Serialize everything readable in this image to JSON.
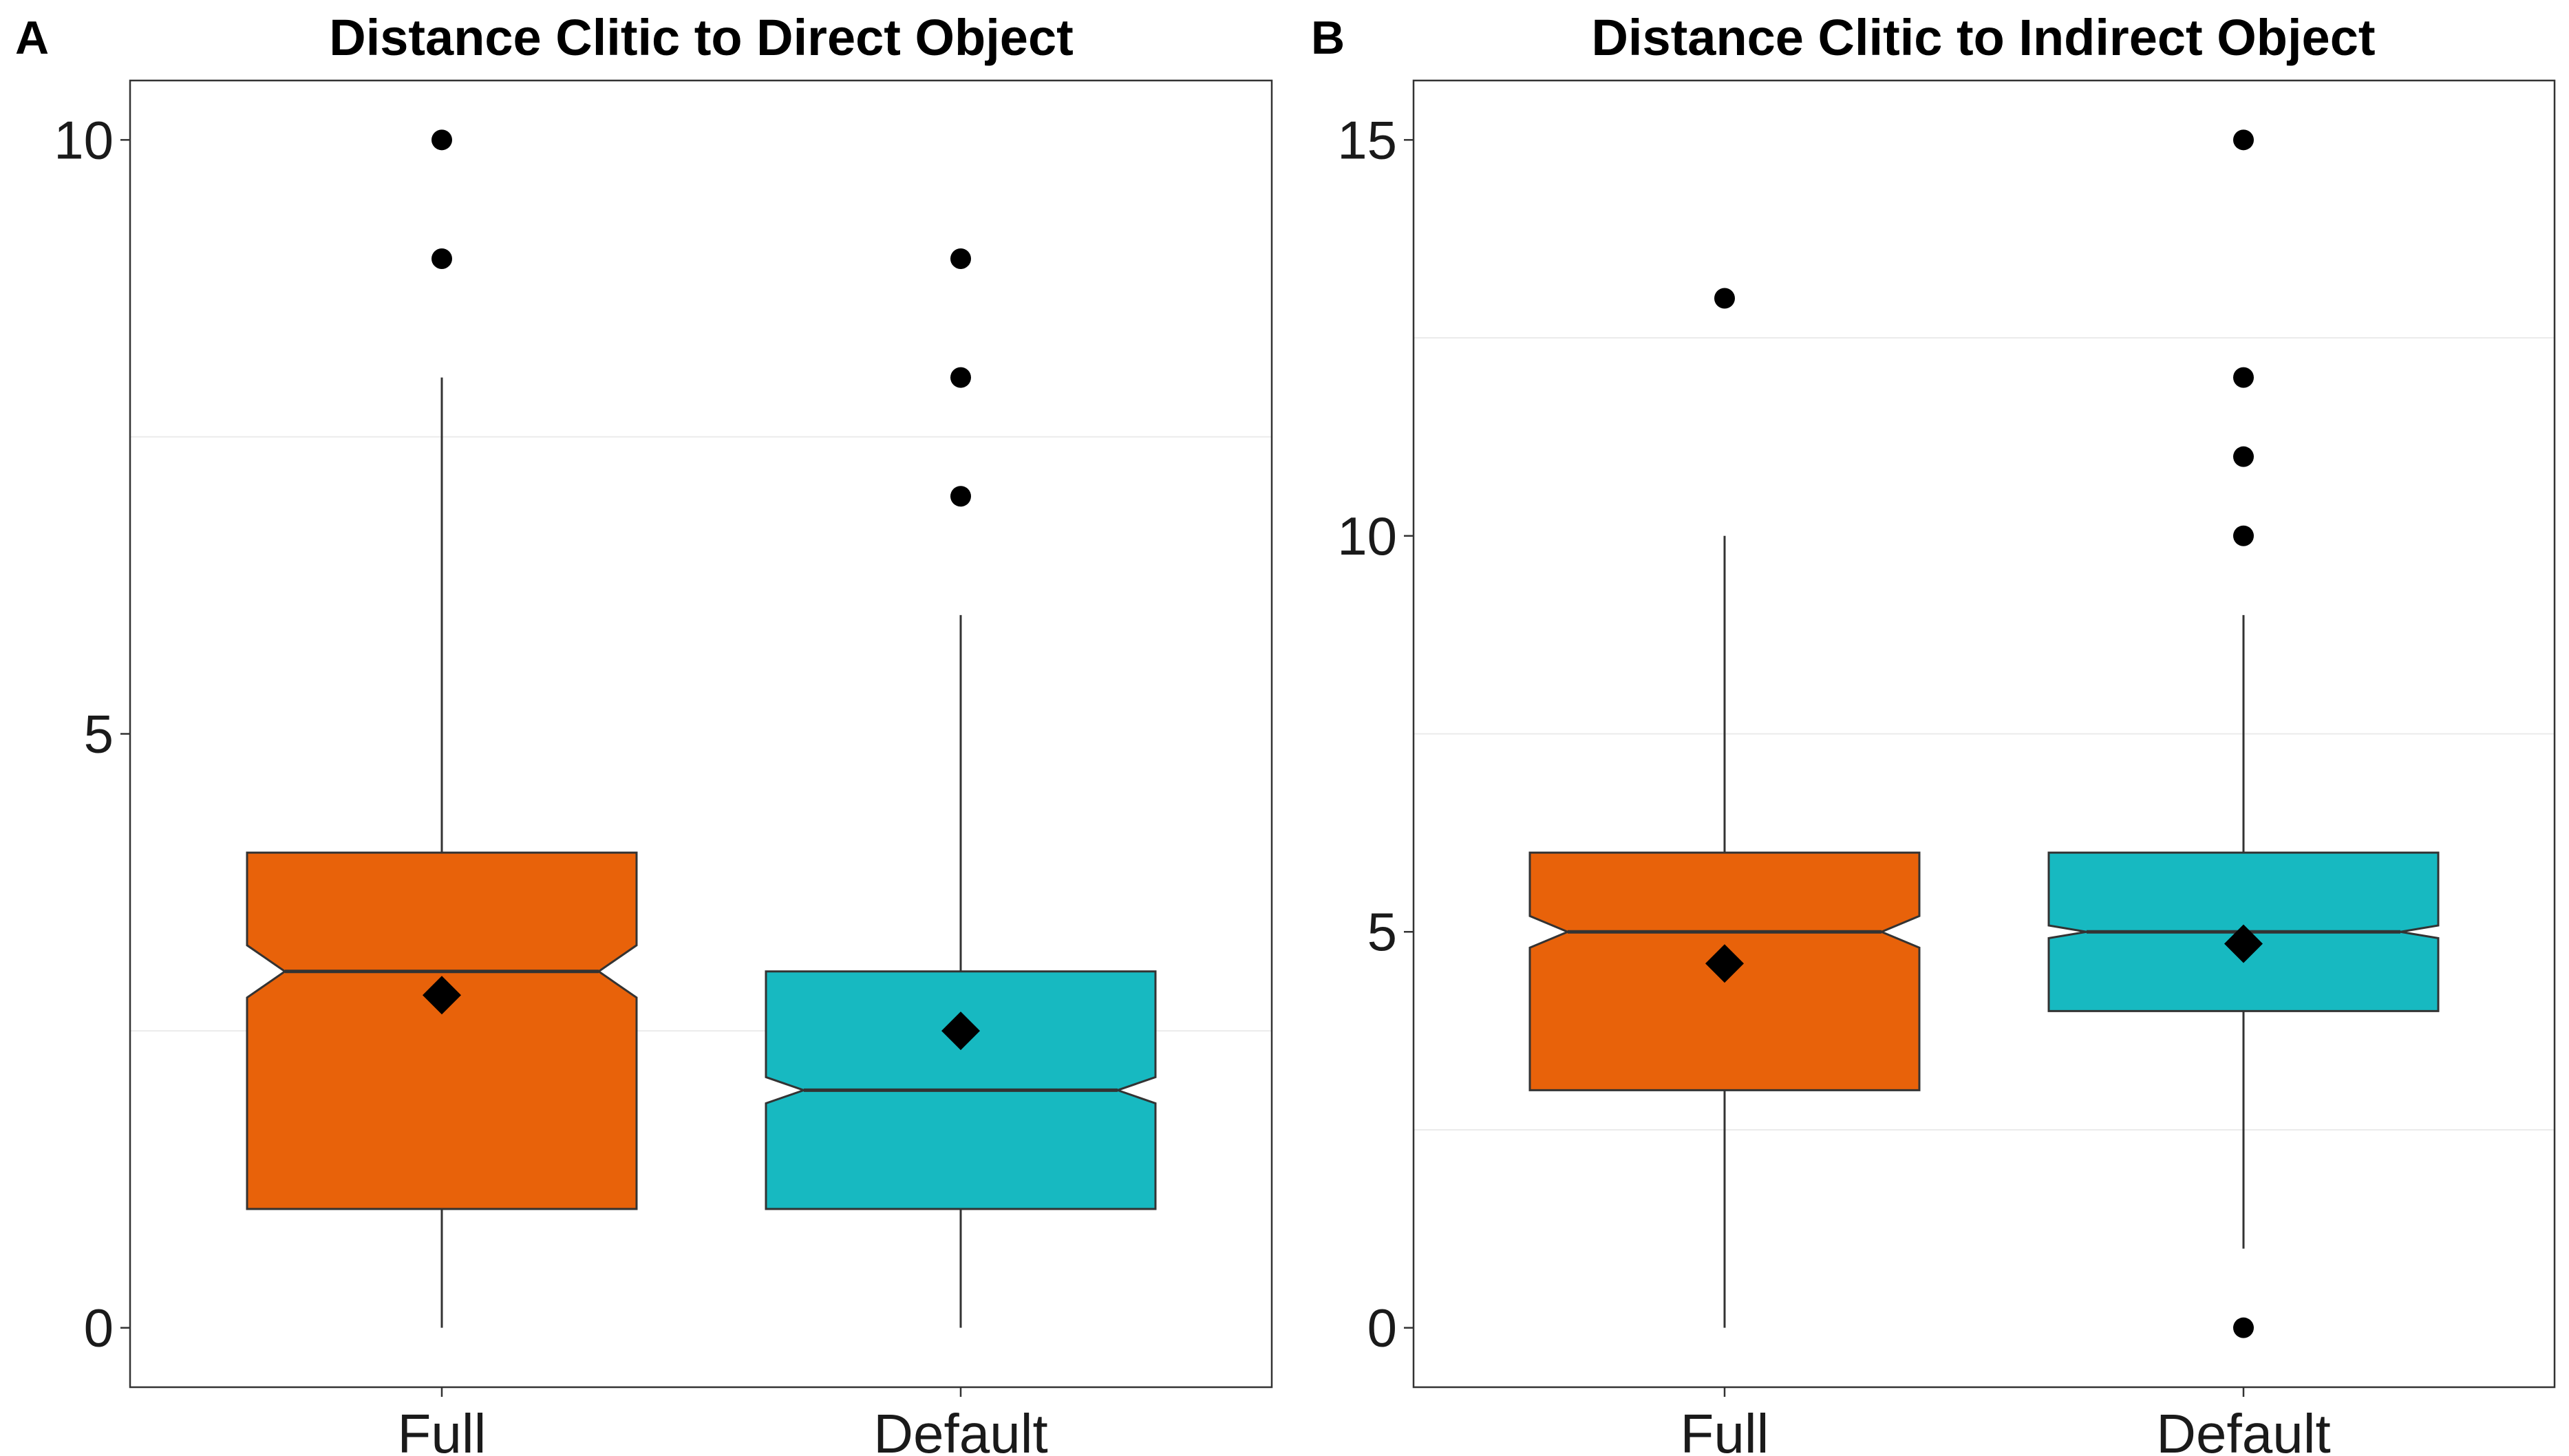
{
  "figure": {
    "panels": [
      {
        "letter": "A",
        "title": "Distance Clitic to Direct Object"
      },
      {
        "letter": "B",
        "title": "Distance Clitic to Indirect Object"
      }
    ]
  },
  "colors": {
    "full": "#E8620A",
    "default": "#17B9C1",
    "outline": "#333333",
    "grid": "#EBEBEB",
    "panel_border": "#333333",
    "points": "#000000"
  },
  "chart_data": [
    {
      "type": "boxplot",
      "notched": true,
      "panel": "A",
      "title": "Distance Clitic to Direct Object",
      "xlabel": "",
      "ylabel": "",
      "ylim": [
        -0.5,
        10.5
      ],
      "yticks": [
        0,
        5,
        10
      ],
      "grid": true,
      "categories": [
        "Full",
        "Default"
      ],
      "boxes": [
        {
          "name": "Full",
          "color": "#E8620A",
          "q1": 1,
          "median": 3,
          "q3": 4,
          "notch_low": 2.78,
          "notch_high": 3.22,
          "whisker_low": 0,
          "whisker_high": 8,
          "mean": 2.8,
          "outliers": [
            9,
            10
          ]
        },
        {
          "name": "Default",
          "color": "#17B9C1",
          "q1": 1,
          "median": 2,
          "q3": 3,
          "notch_low": 1.89,
          "notch_high": 2.11,
          "whisker_low": 0,
          "whisker_high": 6,
          "mean": 2.5,
          "outliers": [
            7,
            8,
            9
          ]
        }
      ]
    },
    {
      "type": "boxplot",
      "notched": true,
      "panel": "B",
      "title": "Distance Clitic to Indirect Object",
      "xlabel": "",
      "ylabel": "",
      "ylim": [
        -0.75,
        15.75
      ],
      "yticks": [
        0,
        5,
        10,
        15
      ],
      "grid": true,
      "categories": [
        "Full",
        "Default"
      ],
      "boxes": [
        {
          "name": "Full",
          "color": "#E8620A",
          "q1": 3,
          "median": 5,
          "q3": 6,
          "notch_low": 4.8,
          "notch_high": 5.2,
          "whisker_low": 0,
          "whisker_high": 10,
          "mean": 4.6,
          "outliers": [
            13
          ]
        },
        {
          "name": "Default",
          "color": "#17B9C1",
          "q1": 4,
          "median": 5,
          "q3": 6,
          "notch_low": 4.92,
          "notch_high": 5.08,
          "whisker_low": 1,
          "whisker_high": 9,
          "mean": 4.85,
          "outliers": [
            0,
            10,
            11,
            12,
            15
          ]
        }
      ]
    }
  ]
}
